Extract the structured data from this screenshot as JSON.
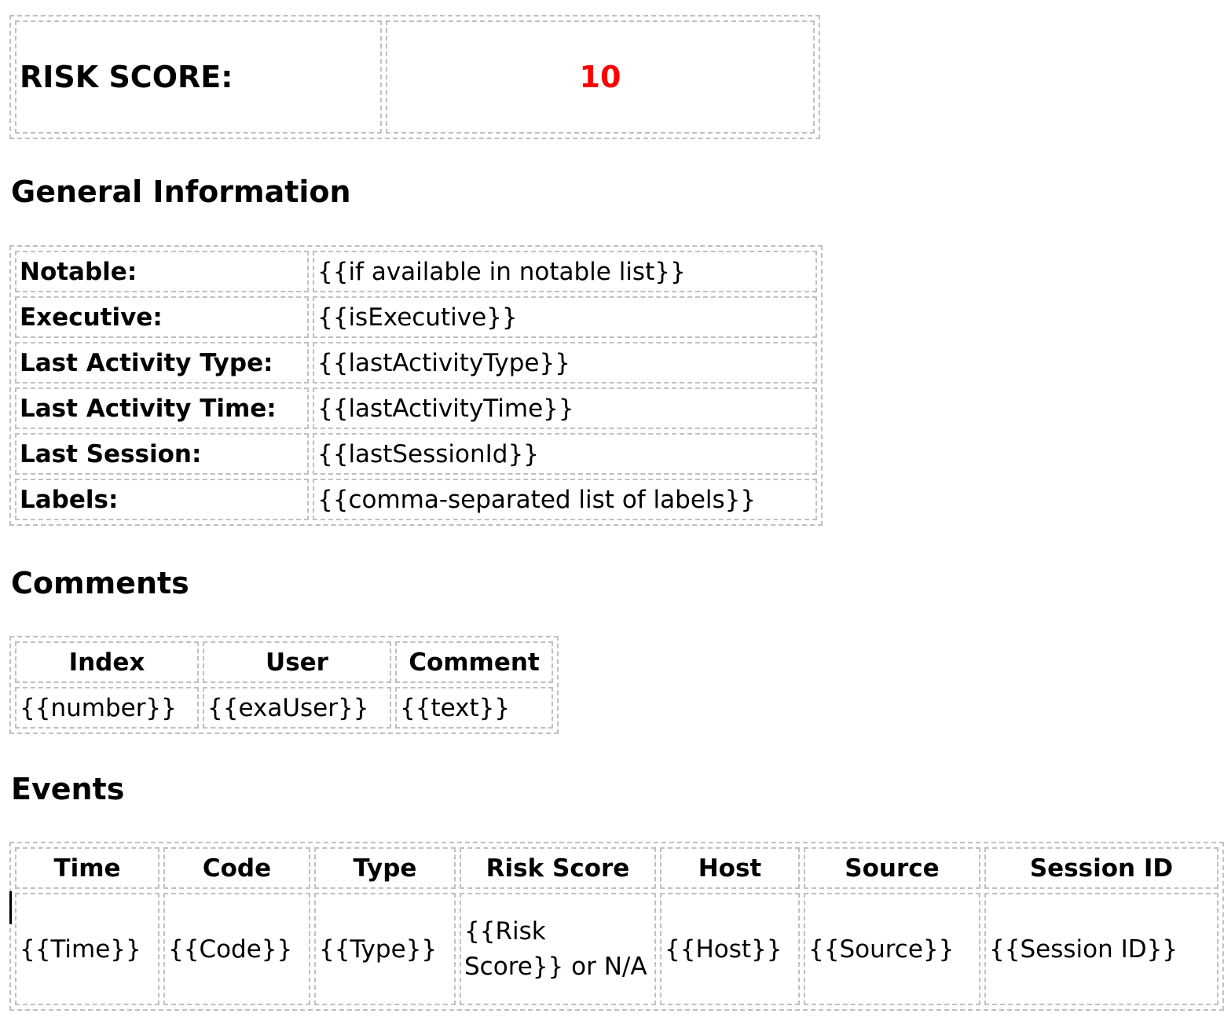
{
  "risk": {
    "label": "RISK SCORE:",
    "value": "10",
    "value_color": "#ff0000"
  },
  "general": {
    "heading": "General Information",
    "rows": [
      {
        "label": "Notable:",
        "value": "{{if available in notable list}}"
      },
      {
        "label": "Executive:",
        "value": "{{isExecutive}}"
      },
      {
        "label": "Last Activity Type:",
        "value": "{{lastActivityType}}"
      },
      {
        "label": "Last Activity Time:",
        "value": "{{lastActivityTime}}"
      },
      {
        "label": "Last Session:",
        "value": "{{lastSessionId}}"
      },
      {
        "label": "Labels:",
        "value": "{{comma-separated list of labels}}"
      }
    ]
  },
  "comments": {
    "heading": "Comments",
    "columns": [
      "Index",
      "User",
      "Comment"
    ],
    "row": [
      "{{number}}",
      "{{exaUser}}",
      "{{text}}"
    ]
  },
  "events": {
    "heading": "Events",
    "columns": [
      "Time",
      "Code",
      "Type",
      "Risk Score",
      "Host",
      "Source",
      "Session ID"
    ],
    "row": [
      "{{Time}}",
      "{{Code}}",
      "{{Type}}",
      "{{Risk Score}} or N/A",
      "{{Host}}",
      "{{Source}}",
      "{{Session ID}}"
    ]
  }
}
